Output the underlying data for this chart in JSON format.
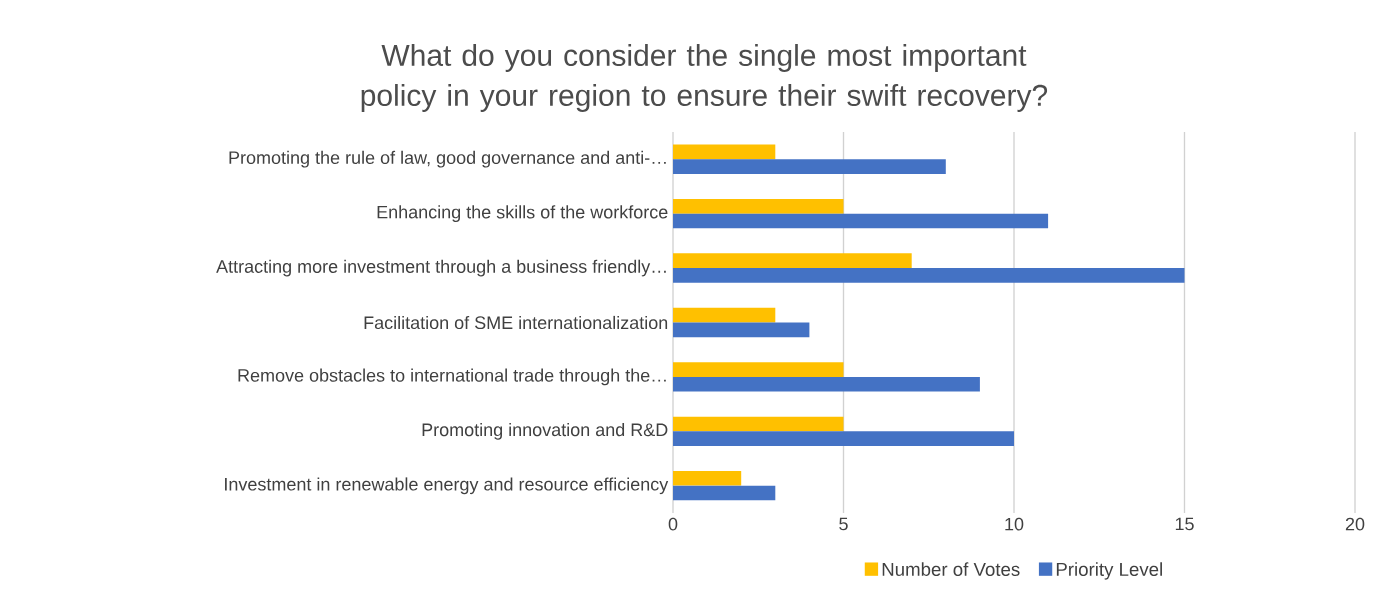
{
  "chart_data": {
    "type": "bar",
    "orientation": "horizontal",
    "title": "What do you consider the single most important policy in your region to ensure their swift recovery?",
    "categories": [
      "Promoting the rule of law, good governance and anti-…",
      "Enhancing the skills of the workforce",
      "Attracting more investment through a business friendly…",
      "Facilitation of SME internationalization",
      "Remove obstacles to international trade through the…",
      "Promoting innovation and R&D",
      "Investment in renewable energy and resource efficiency"
    ],
    "series": [
      {
        "name": "Number of Votes",
        "color": "#ffc000",
        "values": [
          3,
          5,
          7,
          3,
          5,
          5,
          2
        ]
      },
      {
        "name": "Priority Level",
        "color": "#4472c4",
        "values": [
          8,
          11,
          15,
          4,
          9,
          10,
          3
        ]
      }
    ],
    "xlim": [
      0,
      20
    ],
    "xticks": [
      0,
      5,
      10,
      15,
      20
    ],
    "grid": "x",
    "legend": "bottom"
  }
}
